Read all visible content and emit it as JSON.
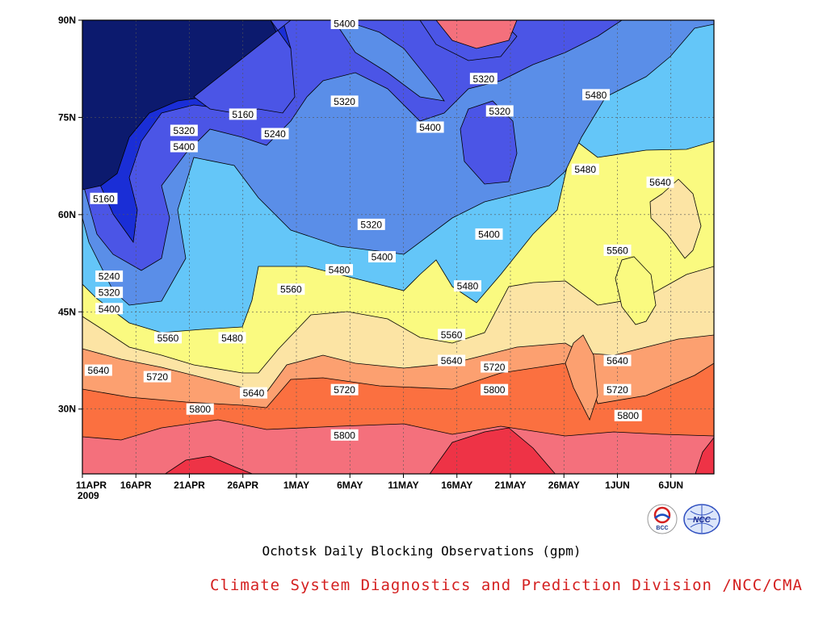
{
  "title": "Ochotsk Daily Blocking Observations (gpm)",
  "credit": "Climate System Diagnostics and Prediction Division /NCC/CMA",
  "logos": {
    "left_text": "BCC",
    "right_text": "NCC"
  },
  "chart_data": {
    "type": "contour",
    "title": "Ochotsk Daily Blocking Observations (gpm)",
    "units": "gpm",
    "xlabel": "",
    "ylabel": "",
    "x_ticks": [
      "11APR",
      "16APR",
      "21APR",
      "26APR",
      "1MAY",
      "6MAY",
      "11MAY",
      "16MAY",
      "21MAY",
      "26MAY",
      "1JUN",
      "6JUN"
    ],
    "x_year": "2009",
    "x_range": [
      "2009-04-11",
      "2009-06-09"
    ],
    "y_ticks": [
      "30N",
      "45N",
      "60N",
      "75N",
      "90N"
    ],
    "y_range": [
      20,
      90
    ],
    "grid": true,
    "levels": [
      5160,
      5240,
      5320,
      5400,
      5480,
      5560,
      5640,
      5720,
      5800,
      5880
    ],
    "fill_colors": [
      "#0c1a6e",
      "#1a2ed6",
      "#4b55e6",
      "#5a8ee8",
      "#64c6f8",
      "#fafa80",
      "#fce4a4",
      "#fca070",
      "#fb7040",
      "#f4707c",
      "#ee3346"
    ],
    "contour_labels": [
      {
        "day": 2,
        "lat": 62.5,
        "value": "5160"
      },
      {
        "day": 2.5,
        "lat": 50.5,
        "value": "5240"
      },
      {
        "day": 2.5,
        "lat": 48,
        "value": "5320"
      },
      {
        "day": 2.5,
        "lat": 45.5,
        "value": "5400"
      },
      {
        "day": 9.5,
        "lat": 73,
        "value": "5320"
      },
      {
        "day": 9.5,
        "lat": 70.5,
        "value": "5400"
      },
      {
        "day": 15,
        "lat": 75.5,
        "value": "5160"
      },
      {
        "day": 18,
        "lat": 72.5,
        "value": "5240"
      },
      {
        "day": 24.5,
        "lat": 89.5,
        "value": "5400"
      },
      {
        "day": 24.5,
        "lat": 77.5,
        "value": "5320"
      },
      {
        "day": 27,
        "lat": 58.5,
        "value": "5320"
      },
      {
        "day": 28,
        "lat": 53.5,
        "value": "5400"
      },
      {
        "day": 32.5,
        "lat": 73.5,
        "value": "5400"
      },
      {
        "day": 37.5,
        "lat": 81,
        "value": "5320"
      },
      {
        "day": 39,
        "lat": 76,
        "value": "5320"
      },
      {
        "day": 38,
        "lat": 57,
        "value": "5400"
      },
      {
        "day": 24,
        "lat": 51.5,
        "value": "5480"
      },
      {
        "day": 19.5,
        "lat": 48.5,
        "value": "5560"
      },
      {
        "day": 36,
        "lat": 49,
        "value": "5480"
      },
      {
        "day": 8,
        "lat": 41,
        "value": "5560"
      },
      {
        "day": 14,
        "lat": 41,
        "value": "5480"
      },
      {
        "day": 34.5,
        "lat": 41.5,
        "value": "5560"
      },
      {
        "day": 48,
        "lat": 78.5,
        "value": "5480"
      },
      {
        "day": 47,
        "lat": 67,
        "value": "5480"
      },
      {
        "day": 54,
        "lat": 65,
        "value": "5640"
      },
      {
        "day": 50,
        "lat": 54.5,
        "value": "5560"
      },
      {
        "day": 1.5,
        "lat": 36,
        "value": "5640"
      },
      {
        "day": 7,
        "lat": 35,
        "value": "5720"
      },
      {
        "day": 16,
        "lat": 32.5,
        "value": "5640"
      },
      {
        "day": 24.5,
        "lat": 33,
        "value": "5720"
      },
      {
        "day": 34.5,
        "lat": 37.5,
        "value": "5640"
      },
      {
        "day": 38.5,
        "lat": 36.5,
        "value": "5720"
      },
      {
        "day": 50,
        "lat": 37.5,
        "value": "5640"
      },
      {
        "day": 50,
        "lat": 33,
        "value": "5720"
      },
      {
        "day": 11,
        "lat": 30,
        "value": "5800"
      },
      {
        "day": 24.5,
        "lat": 26,
        "value": "5800"
      },
      {
        "day": 38.5,
        "lat": 33,
        "value": "5800"
      },
      {
        "day": 51,
        "lat": 29,
        "value": "5800"
      }
    ]
  }
}
